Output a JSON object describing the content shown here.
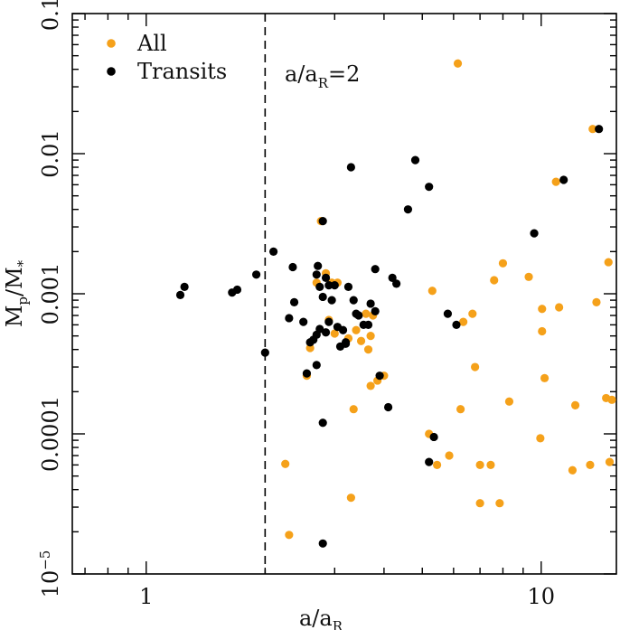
{
  "chart_data": {
    "type": "scatter",
    "xlabel": "a/a",
    "xlabel_sub": "R",
    "ylabel": "M",
    "ylabel_sub": "p",
    "ylabel_rest": "/M",
    "ylabel_sub2": "*",
    "x_scale": "log",
    "y_scale": "log",
    "xlim": [
      0.65,
      15.5
    ],
    "ylim": [
      1e-05,
      0.1
    ],
    "x_ticks": [
      {
        "value": 1,
        "label": "1"
      },
      {
        "value": 10,
        "label": "10"
      }
    ],
    "y_ticks": [
      {
        "value": 0.1,
        "label": "0.1"
      },
      {
        "value": 0.01,
        "label": "0.01"
      },
      {
        "value": 0.001,
        "label": "0.001"
      },
      {
        "value": 0.0001,
        "label": "0.0001"
      },
      {
        "value": 1e-05,
        "label": "10",
        "exp": "−5"
      }
    ],
    "reference_line": {
      "x": 2,
      "style": "dashed",
      "label": "a/a",
      "label_sub": "R",
      "label_rest": "=2"
    },
    "legend": {
      "position": "top-left"
    },
    "colors": {
      "all": "#f5a11a",
      "transits": "#000000",
      "axis": "#000000"
    },
    "series": [
      {
        "name": "All",
        "color": "#f5a11a",
        "points": [
          [
            6.15,
            0.044
          ],
          [
            13.5,
            0.015
          ],
          [
            10.9,
            0.0063
          ],
          [
            2.77,
            0.0033
          ],
          [
            8.0,
            0.00165
          ],
          [
            9.3,
            0.00132
          ],
          [
            7.6,
            0.00125
          ],
          [
            14.8,
            0.00168
          ],
          [
            5.3,
            0.00105
          ],
          [
            13.8,
            0.00087
          ],
          [
            11.1,
            0.0008
          ],
          [
            10.05,
            0.00078
          ],
          [
            6.7,
            0.00072
          ],
          [
            6.35,
            0.00063
          ],
          [
            10.05,
            0.00054
          ],
          [
            6.8,
            0.0003
          ],
          [
            10.2,
            0.00025
          ],
          [
            8.3,
            0.00017
          ],
          [
            12.2,
            0.00016
          ],
          [
            6.25,
            0.00015
          ],
          [
            14.6,
            0.00018
          ],
          [
            15.1,
            0.000175
          ],
          [
            3.35,
            0.00015
          ],
          [
            4.0,
            0.00026
          ],
          [
            3.85,
            0.00024
          ],
          [
            3.7,
            0.00022
          ],
          [
            5.2,
            0.0001
          ],
          [
            9.95,
            9.3e-05
          ],
          [
            5.85,
            7e-05
          ],
          [
            5.45,
            6e-05
          ],
          [
            7.0,
            6e-05
          ],
          [
            7.45,
            6e-05
          ],
          [
            13.3,
            6e-05
          ],
          [
            14.9,
            6.3e-05
          ],
          [
            12.0,
            5.5e-05
          ],
          [
            2.25,
            6.1e-05
          ],
          [
            3.3,
            3.5e-05
          ],
          [
            7.0,
            3.2e-05
          ],
          [
            7.85,
            3.2e-05
          ],
          [
            2.3,
            1.9e-05
          ],
          [
            2.55,
            0.00026
          ],
          [
            2.6,
            0.00041
          ],
          [
            3.5,
            0.00046
          ],
          [
            3.65,
            0.0004
          ],
          [
            3.7,
            0.0005
          ],
          [
            3.25,
            0.00048
          ],
          [
            3.0,
            0.00052
          ],
          [
            2.9,
            0.00065
          ],
          [
            2.95,
            0.0012
          ],
          [
            3.05,
            0.0012
          ],
          [
            2.7,
            0.0012
          ],
          [
            2.85,
            0.0014
          ],
          [
            3.6,
            0.00072
          ],
          [
            3.75,
            0.0007
          ],
          [
            3.4,
            0.00055
          ]
        ]
      },
      {
        "name": "Transits",
        "color": "#000000",
        "points": [
          [
            14.0,
            0.015
          ],
          [
            11.4,
            0.0065
          ],
          [
            4.8,
            0.009
          ],
          [
            5.2,
            0.0058
          ],
          [
            3.3,
            0.008
          ],
          [
            4.6,
            0.004
          ],
          [
            2.8,
            0.0033
          ],
          [
            9.6,
            0.0027
          ],
          [
            1.22,
            0.00098
          ],
          [
            1.25,
            0.00112
          ],
          [
            1.65,
            0.00102
          ],
          [
            1.7,
            0.00107
          ],
          [
            1.9,
            0.00137
          ],
          [
            2.1,
            0.002
          ],
          [
            2.35,
            0.00155
          ],
          [
            2.0,
            0.00038
          ],
          [
            2.3,
            0.00067
          ],
          [
            2.37,
            0.00087
          ],
          [
            2.5,
            0.00063
          ],
          [
            2.6,
            0.00045
          ],
          [
            2.7,
            0.00137
          ],
          [
            2.72,
            0.00158
          ],
          [
            2.75,
            0.00112
          ],
          [
            2.8,
            0.00095
          ],
          [
            2.85,
            0.0013
          ],
          [
            2.9,
            0.00115
          ],
          [
            2.95,
            0.0009
          ],
          [
            3.0,
            0.00115
          ],
          [
            3.05,
            0.00058
          ],
          [
            3.1,
            0.00042
          ],
          [
            3.15,
            0.00055
          ],
          [
            3.2,
            0.00045
          ],
          [
            3.25,
            0.00112
          ],
          [
            3.35,
            0.0009
          ],
          [
            3.4,
            0.00072
          ],
          [
            3.45,
            0.0007
          ],
          [
            3.55,
            0.0006
          ],
          [
            3.65,
            0.0006
          ],
          [
            3.7,
            0.00085
          ],
          [
            3.8,
            0.00075
          ],
          [
            3.8,
            0.0015
          ],
          [
            4.2,
            0.0013
          ],
          [
            4.3,
            0.00118
          ],
          [
            5.8,
            0.00072
          ],
          [
            6.1,
            0.0006
          ],
          [
            2.55,
            0.00027
          ],
          [
            2.65,
            0.00047
          ],
          [
            2.7,
            0.00051
          ],
          [
            2.75,
            0.00056
          ],
          [
            2.85,
            0.00053
          ],
          [
            2.9,
            0.00063
          ],
          [
            3.2,
            0.00044
          ],
          [
            2.7,
            0.00031
          ],
          [
            3.9,
            0.00026
          ],
          [
            4.1,
            0.000155
          ],
          [
            2.8,
            0.00012
          ],
          [
            5.35,
            9.5e-05
          ],
          [
            5.2,
            6.3e-05
          ],
          [
            2.8,
            1.65e-05
          ]
        ]
      }
    ]
  }
}
